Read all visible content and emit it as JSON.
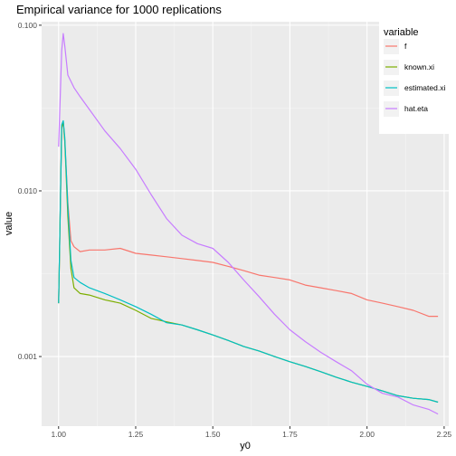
{
  "chart_data": {
    "type": "line",
    "title": "Empirical variance for 1000 replications",
    "xlabel": "y0",
    "ylabel": "value",
    "xlim": [
      0.945,
      2.265
    ],
    "ylim": [
      0.00038,
      0.105
    ],
    "y_scale": "log",
    "grid": true,
    "legend_position": "top-right",
    "legend_title": "variable",
    "x_ticks": [
      1.0,
      1.25,
      1.5,
      1.75,
      2.0,
      2.25
    ],
    "x_tick_labels": [
      "1.00",
      "1.25",
      "1.50",
      "1.75",
      "2.00",
      "2.25"
    ],
    "y_ticks": [
      0.001,
      0.01,
      0.1
    ],
    "y_tick_labels": [
      "0.001",
      "0.010",
      "0.100"
    ],
    "series": [
      {
        "name": "f",
        "color": "#F8766D",
        "x": [
          1.0,
          1.01,
          1.015,
          1.02,
          1.03,
          1.04,
          1.05,
          1.07,
          1.1,
          1.15,
          1.2,
          1.25,
          1.3,
          1.35,
          1.4,
          1.45,
          1.5,
          1.55,
          1.6,
          1.65,
          1.7,
          1.75,
          1.8,
          1.85,
          1.9,
          1.95,
          2.0,
          2.05,
          2.1,
          2.15,
          2.2,
          2.23
        ],
        "y": [
          0.0021,
          0.024,
          0.0262,
          0.02,
          0.0085,
          0.005,
          0.0046,
          0.0043,
          0.0044,
          0.0044,
          0.0045,
          0.0042,
          0.0041,
          0.004,
          0.0039,
          0.0038,
          0.0037,
          0.0035,
          0.0033,
          0.0031,
          0.003,
          0.0029,
          0.0027,
          0.0026,
          0.0025,
          0.0024,
          0.0022,
          0.0021,
          0.002,
          0.0019,
          0.00175,
          0.00175
        ]
      },
      {
        "name": "known.xi",
        "color": "#7CAE00",
        "x": [
          1.0,
          1.01,
          1.015,
          1.02,
          1.03,
          1.04,
          1.05,
          1.07,
          1.1,
          1.15,
          1.2,
          1.25,
          1.3,
          1.35,
          1.4,
          1.45,
          1.5,
          1.55,
          1.6,
          1.65,
          1.7,
          1.75,
          1.8,
          1.85,
          1.9,
          1.95,
          2.0,
          2.05,
          2.1,
          2.15,
          2.2,
          2.23
        ],
        "y": [
          0.0021,
          0.024,
          0.0262,
          0.02,
          0.007,
          0.0034,
          0.0026,
          0.0024,
          0.00235,
          0.0022,
          0.0021,
          0.0019,
          0.0017,
          0.00162,
          0.00155,
          0.00145,
          0.00135,
          0.00125,
          0.00115,
          0.00108,
          0.001,
          0.00093,
          0.00087,
          0.00081,
          0.00075,
          0.0007,
          0.00066,
          0.00062,
          0.00058,
          0.00056,
          0.00055,
          0.00053
        ]
      },
      {
        "name": "estimated.xi",
        "color": "#00BFC4",
        "x": [
          1.0,
          1.01,
          1.015,
          1.02,
          1.03,
          1.04,
          1.05,
          1.07,
          1.1,
          1.15,
          1.2,
          1.25,
          1.3,
          1.35,
          1.4,
          1.45,
          1.5,
          1.55,
          1.6,
          1.65,
          1.7,
          1.75,
          1.8,
          1.85,
          1.9,
          1.95,
          2.0,
          2.05,
          2.1,
          2.15,
          2.2,
          2.23
        ],
        "y": [
          0.0021,
          0.025,
          0.0265,
          0.021,
          0.008,
          0.0038,
          0.003,
          0.0028,
          0.0026,
          0.0024,
          0.0022,
          0.002,
          0.0018,
          0.0016,
          0.00155,
          0.00145,
          0.00135,
          0.00125,
          0.00115,
          0.00108,
          0.001,
          0.00093,
          0.00087,
          0.00081,
          0.00075,
          0.0007,
          0.00066,
          0.00062,
          0.00058,
          0.00056,
          0.00055,
          0.00053
        ]
      },
      {
        "name": "hat.eta",
        "color": "#C77CFF",
        "x": [
          1.0,
          1.01,
          1.015,
          1.02,
          1.03,
          1.05,
          1.07,
          1.1,
          1.15,
          1.2,
          1.25,
          1.3,
          1.35,
          1.4,
          1.45,
          1.5,
          1.55,
          1.6,
          1.65,
          1.7,
          1.75,
          1.8,
          1.85,
          1.9,
          1.95,
          2.0,
          2.05,
          2.1,
          2.15,
          2.2,
          2.23
        ],
        "y": [
          0.0185,
          0.07,
          0.089,
          0.075,
          0.05,
          0.042,
          0.037,
          0.031,
          0.023,
          0.018,
          0.0135,
          0.0095,
          0.0068,
          0.0054,
          0.0048,
          0.0045,
          0.0037,
          0.0029,
          0.0023,
          0.0018,
          0.00145,
          0.00123,
          0.00106,
          0.00093,
          0.00082,
          0.00068,
          0.0006,
          0.00057,
          0.00051,
          0.00048,
          0.00045
        ]
      }
    ]
  }
}
